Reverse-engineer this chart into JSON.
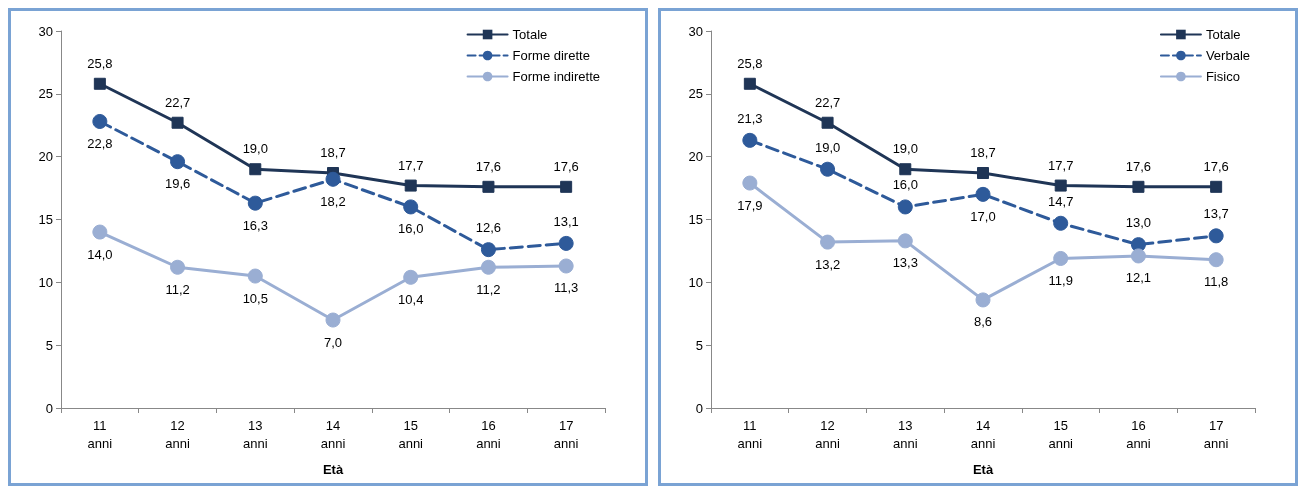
{
  "chart_data": [
    {
      "type": "line",
      "xlabel": "Età",
      "categories": [
        "11\nanni",
        "12\nanni",
        "13\nanni",
        "14\nanni",
        "15\nanni",
        "16\nanni",
        "17\nanni"
      ],
      "ylim": [
        0,
        30
      ],
      "yticks": [
        0,
        5,
        10,
        15,
        20,
        25,
        30
      ],
      "grid": false,
      "legend": "top right",
      "series": [
        {
          "name": "Totale",
          "color": "#1f3556",
          "marker": "square",
          "line_style": "solid",
          "values": [
            25.8,
            22.7,
            19.0,
            18.7,
            17.7,
            17.6,
            17.6
          ],
          "value_labels": [
            "25,8",
            "22,7",
            "19,0",
            "18,7",
            "17,7",
            "17,6",
            "17,6"
          ]
        },
        {
          "name": "Forme dirette",
          "color": "#2e5a9a",
          "marker": "circle",
          "line_style": "dashed",
          "values": [
            22.8,
            19.6,
            16.3,
            18.2,
            16.0,
            12.6,
            13.1
          ],
          "value_labels": [
            "22,8",
            "19,6",
            "16,3",
            "18,2",
            "16,0",
            "12,6",
            "13,1"
          ]
        },
        {
          "name": "Forme indirette",
          "color": "#9aaed3",
          "marker": "circle",
          "line_style": "solid",
          "values": [
            14.0,
            11.2,
            10.5,
            7.0,
            10.4,
            11.2,
            11.3
          ],
          "value_labels": [
            "14,0",
            "11,2",
            "10,5",
            "7,0",
            "10,4",
            "11,2",
            "11,3"
          ]
        }
      ]
    },
    {
      "type": "line",
      "xlabel": "Età",
      "categories": [
        "11\nanni",
        "12\nanni",
        "13\nanni",
        "14\nanni",
        "15\nanni",
        "16\nanni",
        "17\nanni"
      ],
      "ylim": [
        0,
        30
      ],
      "yticks": [
        0,
        5,
        10,
        15,
        20,
        25,
        30
      ],
      "grid": false,
      "legend": "top right",
      "series": [
        {
          "name": "Totale",
          "color": "#1f3556",
          "marker": "square",
          "line_style": "solid",
          "values": [
            25.8,
            22.7,
            19.0,
            18.7,
            17.7,
            17.6,
            17.6
          ],
          "value_labels": [
            "25,8",
            "22,7",
            "19,0",
            "18,7",
            "17,7",
            "17,6",
            "17,6"
          ]
        },
        {
          "name": "Verbale",
          "color": "#2e5a9a",
          "marker": "circle",
          "line_style": "dashed",
          "values": [
            21.3,
            19.0,
            16.0,
            17.0,
            14.7,
            13.0,
            13.7
          ],
          "value_labels": [
            "21,3",
            "19,0",
            "16,0",
            "17,0",
            "14,7",
            "13,0",
            "13,7"
          ]
        },
        {
          "name": "Fisico",
          "color": "#9aaed3",
          "marker": "circle",
          "line_style": "solid",
          "values": [
            17.9,
            13.2,
            13.3,
            8.6,
            11.9,
            12.1,
            11.8
          ],
          "value_labels": [
            "17,9",
            "13,2",
            "13,3",
            "8,6",
            "11,9",
            "12,1",
            "11,8"
          ]
        }
      ]
    }
  ]
}
